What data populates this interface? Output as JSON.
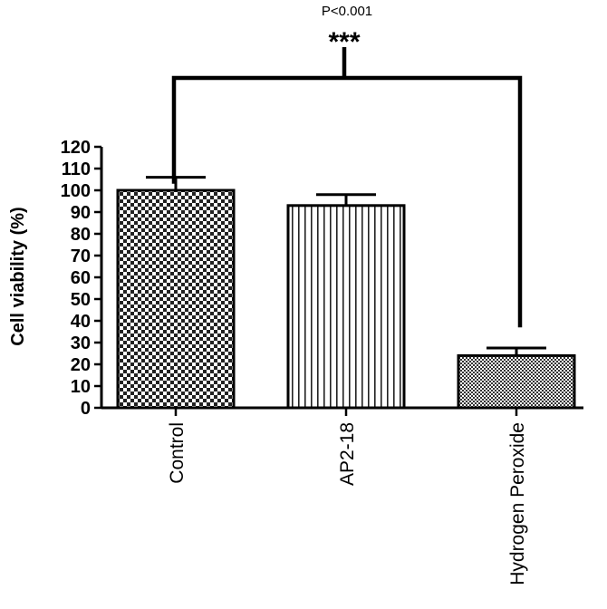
{
  "chart_data": {
    "type": "bar",
    "categories": [
      "Control",
      "AP2-18",
      "Hydrogen Peroxide"
    ],
    "values": [
      100,
      93,
      24
    ],
    "errors": [
      6,
      5,
      3.5
    ],
    "patterns": [
      "checker",
      "vertical-lines",
      "fine-checker"
    ],
    "ylabel": "Cell viability (%)",
    "xlabel": "",
    "ylim": [
      0,
      120
    ],
    "yticks": [
      0,
      10,
      20,
      30,
      40,
      50,
      60,
      70,
      80,
      90,
      100,
      110,
      120
    ],
    "annotation": {
      "p_value": "P<0.001",
      "significance": "***",
      "compare": [
        "Control",
        "Hydrogen Peroxide"
      ]
    },
    "grid": false,
    "legend": "none"
  }
}
